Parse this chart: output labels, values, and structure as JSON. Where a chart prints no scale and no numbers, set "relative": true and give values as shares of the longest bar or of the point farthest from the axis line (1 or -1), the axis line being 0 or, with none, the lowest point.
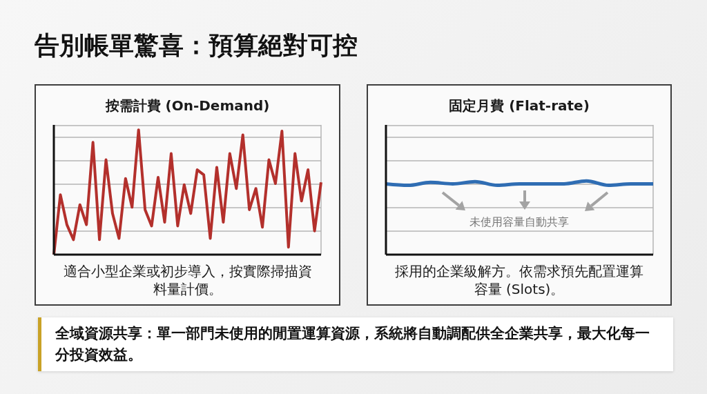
{
  "chart_data": [
    {
      "type": "other",
      "title": "告別帳單驚喜：預算絕對可控"
    },
    {
      "type": "line",
      "title": "按需計費 (On-Demand)",
      "relative": true,
      "grid": true,
      "color": "#b3302c",
      "categories": [
        null,
        null,
        null,
        null,
        null,
        null,
        null,
        null,
        null,
        null,
        null,
        null,
        null,
        null,
        null,
        null,
        null,
        null,
        null,
        null,
        null,
        null,
        null,
        null,
        null,
        null,
        null,
        null,
        null,
        null,
        null,
        null,
        null,
        null,
        null,
        null,
        null,
        null,
        null,
        null,
        null,
        null
      ],
      "values": [
        0,
        0.48,
        0.24,
        0.12,
        0.4,
        0.24,
        0.9,
        0.12,
        0.76,
        0.33,
        0.13,
        0.61,
        0.38,
        1,
        0.36,
        0.23,
        0.62,
        0.26,
        0.81,
        0.23,
        0.56,
        0.33,
        0.68,
        0.64,
        0.13,
        0.7,
        0.26,
        0.81,
        0.53,
        0.96,
        0.36,
        0.53,
        0.22,
        0.76,
        0.57,
        0.99,
        0.06,
        0.81,
        0.43,
        0.68,
        0.19,
        0.58
      ],
      "annotations": [
        "適合小型企業或初步導入，按實際掃描資料量計價。"
      ]
    },
    {
      "type": "line",
      "title": "固定月費 (Flat-rate)",
      "relative": true,
      "grid": true,
      "color": "#2f6db3",
      "categories": [
        null,
        null,
        null,
        null,
        null,
        null,
        null,
        null,
        null,
        null,
        null,
        null,
        null
      ],
      "values": [
        0.96,
        0.94,
        0.98,
        0.96,
        0.99,
        0.94,
        0.96,
        0.96,
        0.96,
        1,
        0.94,
        0.96,
        0.96
      ],
      "annotations": [
        "未使用容量自動共享",
        "採用的企業級解方。依需求預先配置運算容量 (Slots)。"
      ]
    },
    {
      "type": "other",
      "annotations": [
        "全域資源共享：單一部門未使用的閒置運算資源，系統將自動調配供全企業共享，最大化每一分投資效益。"
      ]
    }
  ]
}
